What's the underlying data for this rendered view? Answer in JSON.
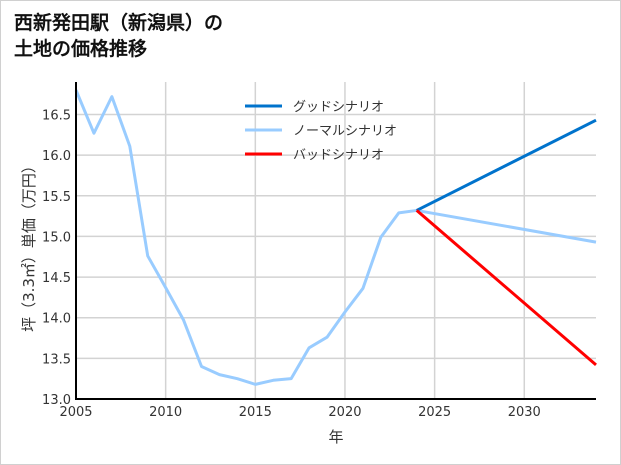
{
  "chart_data": {
    "type": "line",
    "title_lines": [
      "西新発田駅（新潟県）の",
      "土地の価格推移"
    ],
    "xlabel": "年",
    "ylabel": "坪（3.3㎡）単価（万円）",
    "xlim": [
      2005,
      2034
    ],
    "ylim": [
      13.0,
      16.9
    ],
    "xticks": [
      2005,
      2010,
      2015,
      2020,
      2025,
      2030
    ],
    "yticks": [
      13.0,
      13.5,
      14.0,
      14.5,
      15.0,
      15.5,
      16.0,
      16.5
    ],
    "grid": true,
    "legend_position": "top-center",
    "series": [
      {
        "name": "グッドシナリオ",
        "color": "#0073cc",
        "x": [
          2024,
          2034
        ],
        "y": [
          15.32,
          16.43
        ]
      },
      {
        "name": "ノーマルシナリオ",
        "color": "#99ccff",
        "x": [
          2005,
          2006,
          2007,
          2008,
          2009,
          2010,
          2011,
          2012,
          2013,
          2014,
          2015,
          2016,
          2017,
          2018,
          2019,
          2020,
          2021,
          2022,
          2023,
          2024,
          2034
        ],
        "y": [
          16.8,
          16.27,
          16.72,
          16.11,
          14.76,
          14.37,
          13.97,
          13.4,
          13.3,
          13.25,
          13.18,
          13.23,
          13.25,
          13.63,
          13.76,
          14.07,
          14.36,
          14.99,
          15.29,
          15.32,
          14.93
        ]
      },
      {
        "name": "バッドシナリオ",
        "color": "#ff0000",
        "x": [
          2024,
          2034
        ],
        "y": [
          15.32,
          13.42
        ]
      }
    ]
  }
}
